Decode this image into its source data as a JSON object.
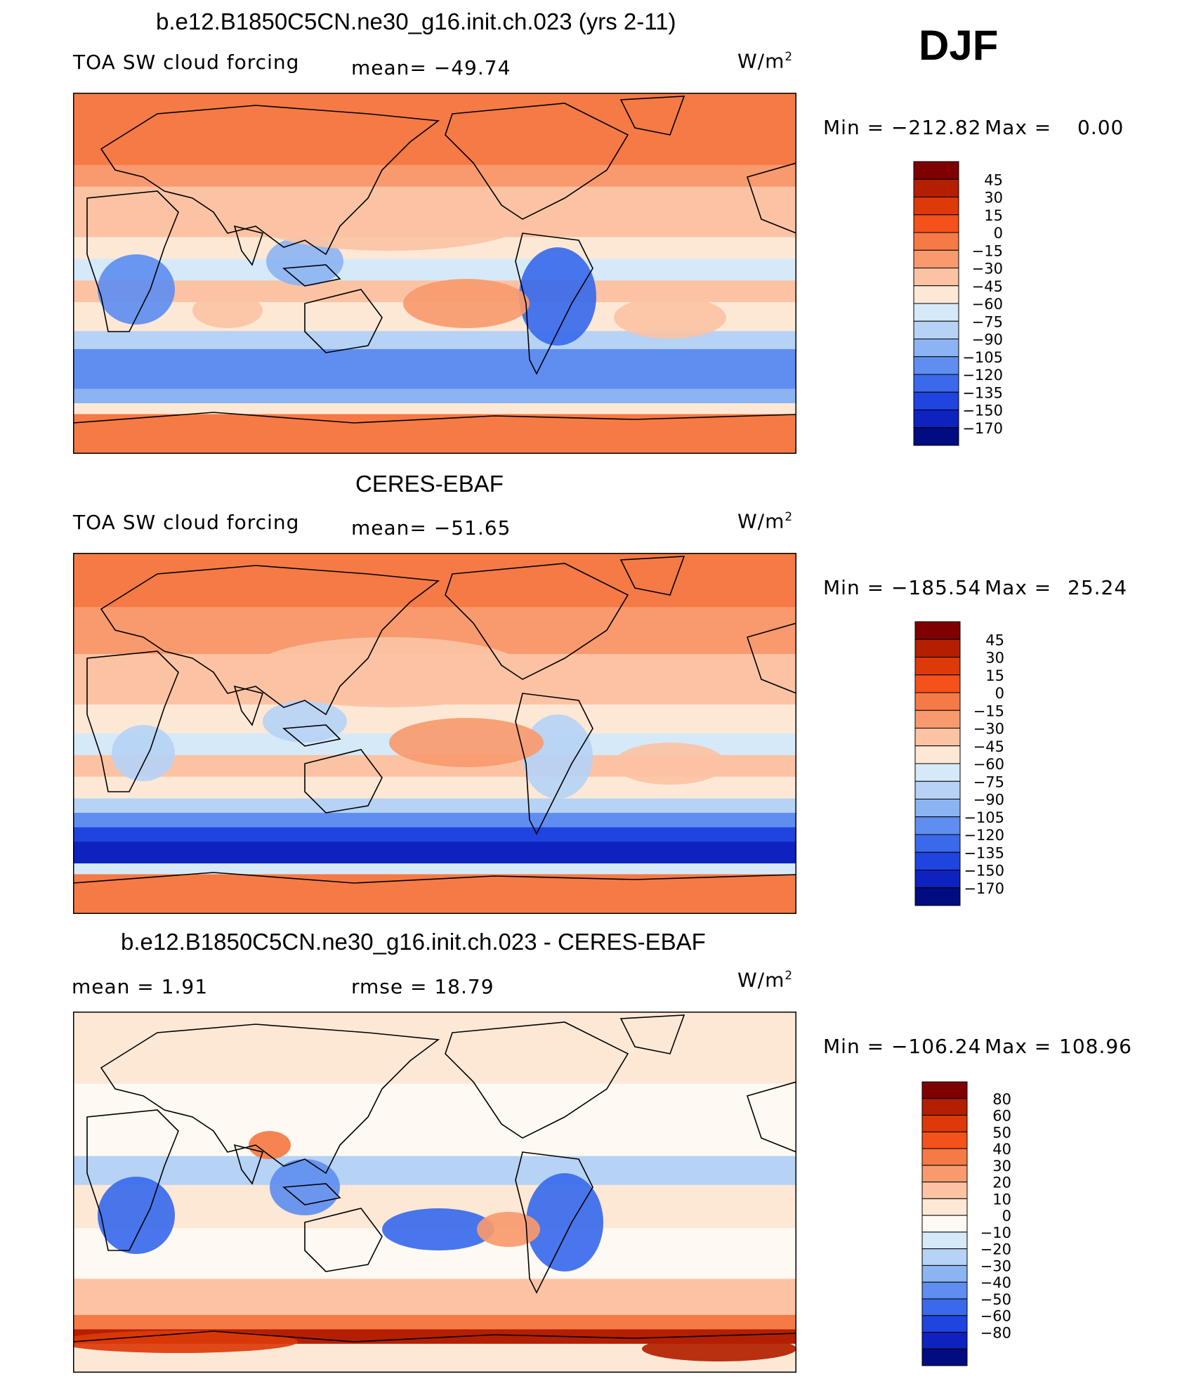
{
  "header": {
    "season": "DJF"
  },
  "panels": [
    {
      "title": "b.e12.B1850C5CN.ne30_g16.init.ch.023 (yrs 2-11)",
      "left_label": "TOA SW cloud forcing",
      "center_label": "mean= −49.74",
      "units": "W/m",
      "units_sup": "2",
      "minmax": {
        "min_label": "Min = −212.82",
        "max_label": "Max =",
        "max_value": "0.00"
      },
      "colorbar": [
        "45",
        "30",
        "15",
        "0",
        "−15",
        "−30",
        "−45",
        "−60",
        "−75",
        "−90",
        "−105",
        "−120",
        "−135",
        "−150",
        "−170"
      ]
    },
    {
      "title": "CERES-EBAF",
      "left_label": "TOA SW cloud forcing",
      "center_label": "mean= −51.65",
      "units": "W/m",
      "units_sup": "2",
      "minmax": {
        "min_label": "Min = −185.54",
        "max_label": "Max =",
        "max_value": "25.24"
      },
      "colorbar": [
        "45",
        "30",
        "15",
        "0",
        "−15",
        "−30",
        "−45",
        "−60",
        "−75",
        "−90",
        "−105",
        "−120",
        "−135",
        "−150",
        "−170"
      ]
    },
    {
      "title": "b.e12.B1850C5CN.ne30_g16.init.ch.023 - CERES-EBAF",
      "left_label": "mean =    1.91",
      "center_label": "rmse =   18.79",
      "units": "W/m",
      "units_sup": "2",
      "minmax": {
        "min_label": "Min = −106.24",
        "max_label": "Max =",
        "max_value": "108.96"
      },
      "colorbar": [
        "80",
        "60",
        "50",
        "40",
        "30",
        "20",
        "10",
        "0",
        "−10",
        "−20",
        "−30",
        "−40",
        "−50",
        "−60",
        "−80"
      ]
    }
  ],
  "colors": {
    "abs_scale": [
      "#7f0000",
      "#b31f00",
      "#dd3a0a",
      "#f4521a",
      "#f57a45",
      "#f89a6e",
      "#fbc3a4",
      "#fde8d6",
      "#d6e9f8",
      "#b6d2f5",
      "#8cb4f2",
      "#5f8ef0",
      "#3a6aeb",
      "#1f44df",
      "#0d22be",
      "#000c80"
    ],
    "diff_scale": [
      "#7f0000",
      "#b31f00",
      "#dd3a0a",
      "#f4521a",
      "#f57a45",
      "#f89a6e",
      "#fbc3a4",
      "#fde8d6",
      "#fef9f2",
      "#d6e9f8",
      "#b6d2f5",
      "#8cb4f2",
      "#5f8ef0",
      "#3a6aeb",
      "#1f44df",
      "#0d22be",
      "#000c80"
    ],
    "land_outline": "#000000"
  },
  "chart_data": [
    {
      "type": "heatmap",
      "title": "b.e12.B1850C5CN.ne30_g16.init.ch.023 (yrs 2-11)",
      "variable": "TOA SW cloud forcing",
      "units": "W/m2",
      "mean": -49.74,
      "min": -212.82,
      "max": 0.0,
      "levels": [
        45,
        30,
        15,
        0,
        -15,
        -30,
        -45,
        -60,
        -75,
        -90,
        -105,
        -120,
        -135,
        -150,
        -170
      ],
      "projection": "cylindrical equidistant, Pacific-centered global map"
    },
    {
      "type": "heatmap",
      "title": "CERES-EBAF",
      "variable": "TOA SW cloud forcing",
      "units": "W/m2",
      "mean": -51.65,
      "min": -185.54,
      "max": 25.24,
      "levels": [
        45,
        30,
        15,
        0,
        -15,
        -30,
        -45,
        -60,
        -75,
        -90,
        -105,
        -120,
        -135,
        -150,
        -170
      ],
      "projection": "cylindrical equidistant, Pacific-centered global map"
    },
    {
      "type": "heatmap",
      "title": "b.e12.B1850C5CN.ne30_g16.init.ch.023 - CERES-EBAF",
      "units": "W/m2",
      "mean": 1.91,
      "rmse": 18.79,
      "min": -106.24,
      "max": 108.96,
      "levels": [
        80,
        60,
        50,
        40,
        30,
        20,
        10,
        0,
        -10,
        -20,
        -30,
        -40,
        -50,
        -60,
        -80
      ],
      "projection": "cylindrical equidistant, Pacific-centered global map"
    }
  ]
}
